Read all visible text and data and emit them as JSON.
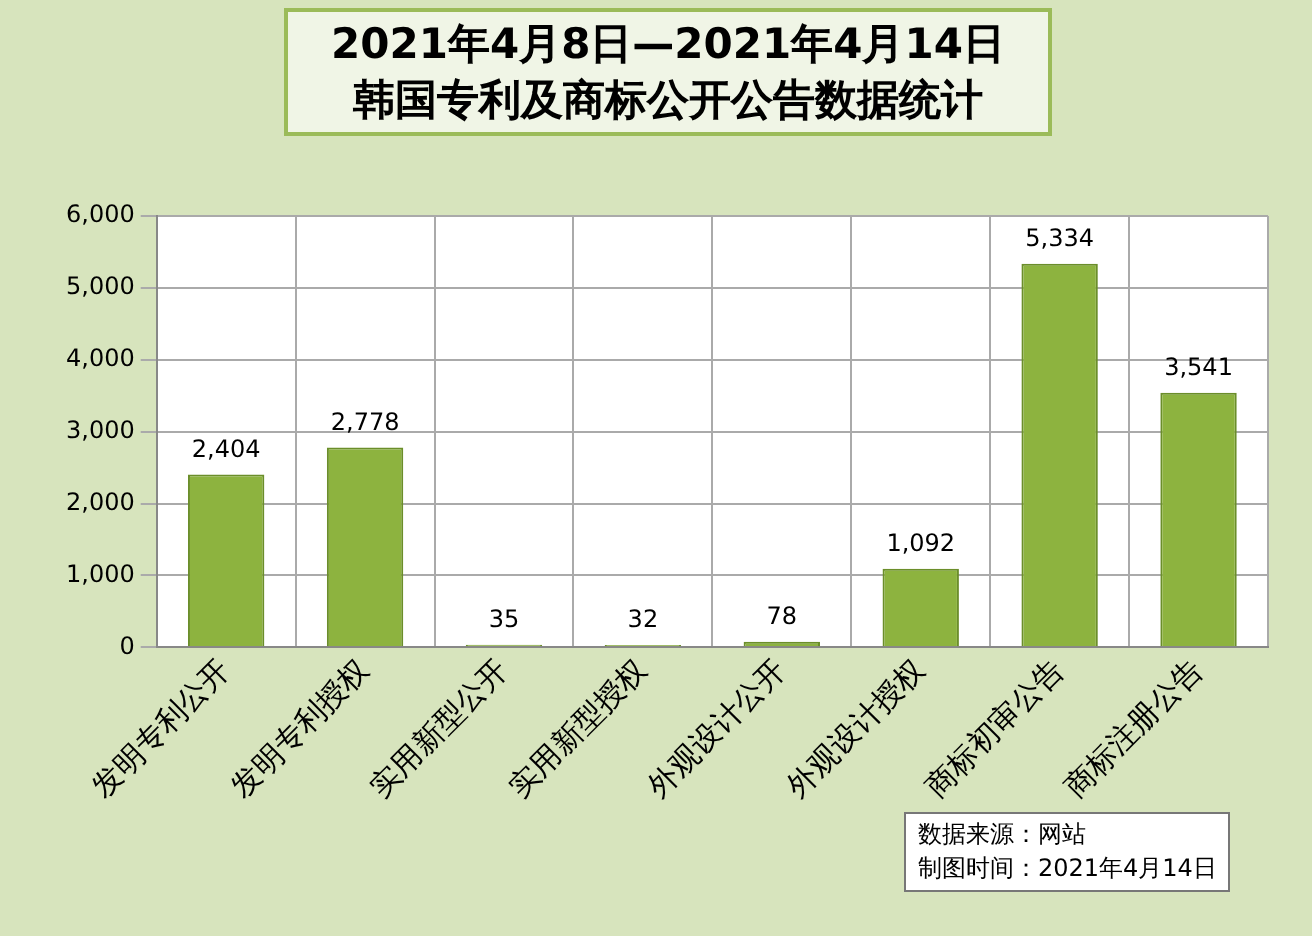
{
  "chart_data": {
    "type": "bar",
    "title": "2021年4月8日—2021年4月14日",
    "subtitle": "韩国专利及商标公开公告数据统计",
    "categories": [
      "发明专利公开",
      "发明专利授权",
      "实用新型公开",
      "实用新型授权",
      "外观设计公开",
      "外观设计授权",
      "商标初审公告",
      "商标注册公告"
    ],
    "values": [
      2404,
      2778,
      35,
      32,
      78,
      1092,
      5334,
      3541
    ],
    "value_labels": [
      "2,404",
      "2,778",
      "35",
      "32",
      "78",
      "1,092",
      "5,334",
      "3,541"
    ],
    "color": "#8db33f",
    "ylim": [
      0,
      6000
    ],
    "yticks": [
      {
        "value": 0,
        "label": "0"
      },
      {
        "value": 1000,
        "label": "1,000"
      },
      {
        "value": 2000,
        "label": "2,000"
      },
      {
        "value": 3000,
        "label": "3,000"
      },
      {
        "value": 4000,
        "label": "4,000"
      },
      {
        "value": 5000,
        "label": "5,000"
      },
      {
        "value": 6000,
        "label": "6,000"
      }
    ],
    "grid": true,
    "annotations": [
      "数据来源：网站",
      "制图时间：2021年4月14日"
    ]
  }
}
